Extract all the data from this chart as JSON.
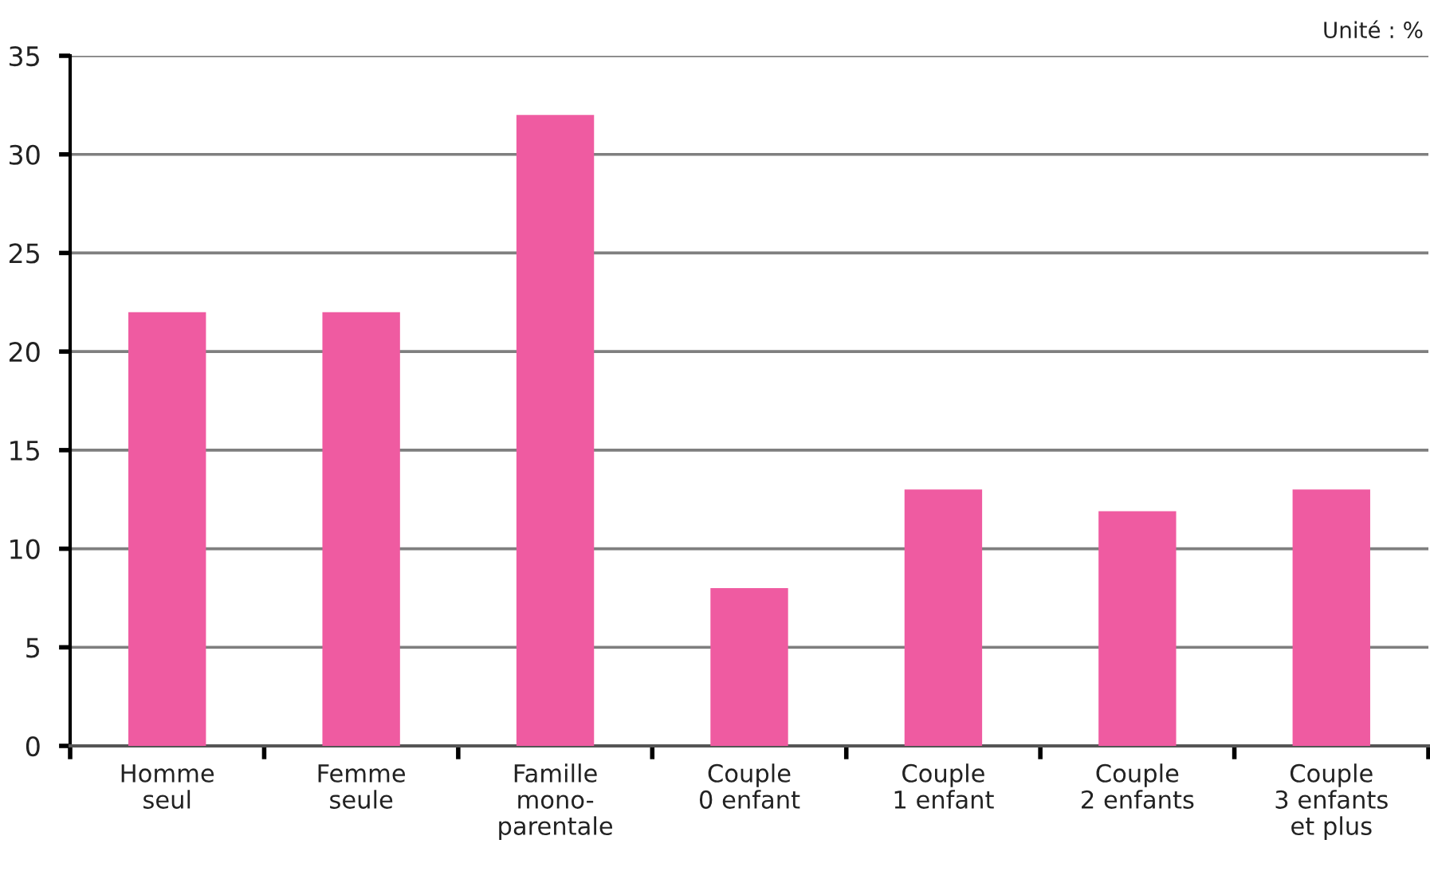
{
  "chart_data": {
    "type": "bar",
    "categories": [
      "Homme\nseul",
      "Femme\nseule",
      "Famille\nmono-\nparentale",
      "Couple\n0 enfant",
      "Couple\n1 enfant",
      "Couple\n2 enfants",
      "Couple\n3 enfants\net plus"
    ],
    "values": [
      22,
      22,
      32,
      8,
      13,
      11.9,
      13
    ],
    "color": "#ef5ba1",
    "ylim": [
      0,
      35
    ],
    "yticks": [
      0,
      5,
      10,
      15,
      20,
      25,
      30,
      35
    ],
    "grid": "y",
    "annotations": [
      "Unité : %"
    ]
  }
}
